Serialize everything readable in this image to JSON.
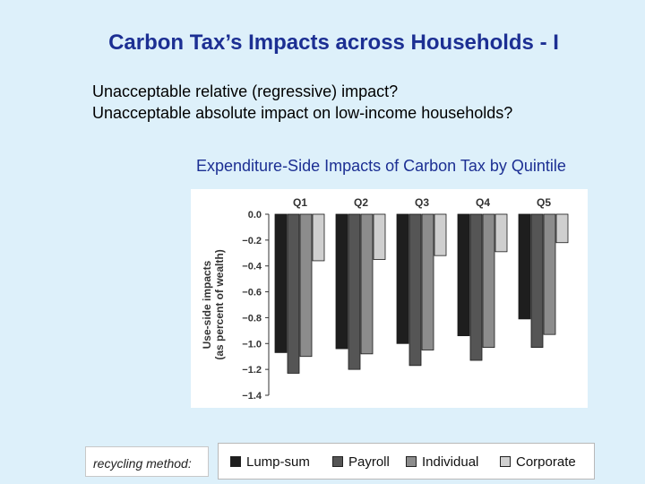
{
  "slide": {
    "title": "Carbon Tax’s Impacts across Households - I",
    "bullets": [
      "Unacceptable relative (regressive) impact?",
      "Unacceptable absolute impact on low-income households?"
    ],
    "chart_caption": "Expenditure-Side Impacts of Carbon Tax by Quintile",
    "recycling_label": "recycling method:"
  },
  "colors": {
    "title": "#1c2f93",
    "background": "#ddf0fa",
    "series": [
      "#1e1e1e",
      "#555555",
      "#8c8c8c",
      "#cfcfcf"
    ]
  },
  "chart_data": {
    "type": "bar",
    "categories": [
      "Q1",
      "Q2",
      "Q3",
      "Q4",
      "Q5"
    ],
    "category_axis_position": "top",
    "ylabel": "Use-side impacts\n(as percent of wealth)",
    "ylim": [
      -1.4,
      0.0
    ],
    "yticks": [
      0.0,
      -0.2,
      -0.4,
      -0.6,
      -0.8,
      -1.0,
      -1.2,
      -1.4
    ],
    "ytick_labels": [
      "0.0",
      "−0.2",
      "−0.4",
      "−0.6",
      "−0.8",
      "−1.0",
      "−1.2",
      "−1.4"
    ],
    "grid": false,
    "legend_position": "bottom",
    "series": [
      {
        "name": "Lump-sum",
        "values": [
          -1.07,
          -1.04,
          -1.0,
          -0.94,
          -0.81
        ]
      },
      {
        "name": "Payroll",
        "values": [
          -1.23,
          -1.2,
          -1.17,
          -1.13,
          -1.03
        ]
      },
      {
        "name": "Individual",
        "values": [
          -1.1,
          -1.08,
          -1.05,
          -1.03,
          -0.93
        ]
      },
      {
        "name": "Corporate",
        "values": [
          -0.36,
          -0.35,
          -0.32,
          -0.29,
          -0.22
        ]
      }
    ]
  }
}
